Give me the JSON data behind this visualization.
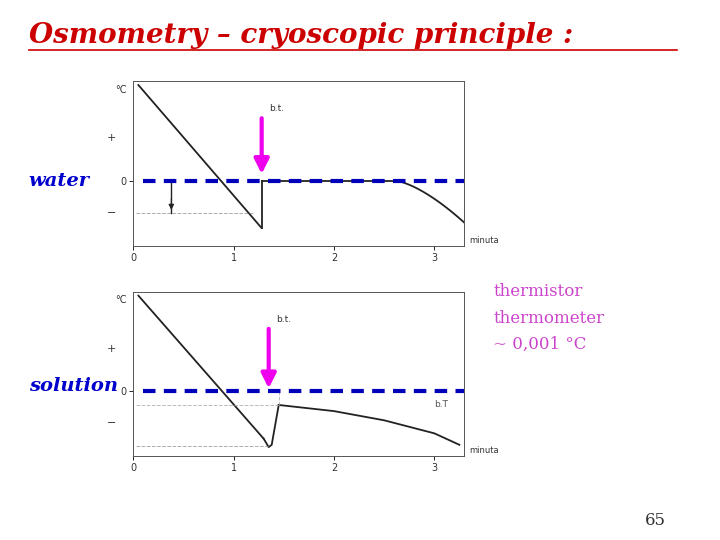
{
  "title": "Osmometry – cryoscopic principle :",
  "title_color": "#cc0000",
  "title_fontsize": 20,
  "bg_color": "#ffffff",
  "water_label": "water",
  "solution_label": "solution",
  "label_color": "#0000cc",
  "label_fontsize": 14,
  "thermistor_text": "thermistor\nthermometer\n~ 0,001 °C",
  "thermistor_color": "#cc44cc",
  "thermistor_fontsize": 12,
  "page_number": "65",
  "dashed_line_color": "#0000bb",
  "arrow_color": "#ee00ee",
  "curve_color": "#222222",
  "axes_bg": "#ffffff",
  "graph_border_color": "#555555"
}
